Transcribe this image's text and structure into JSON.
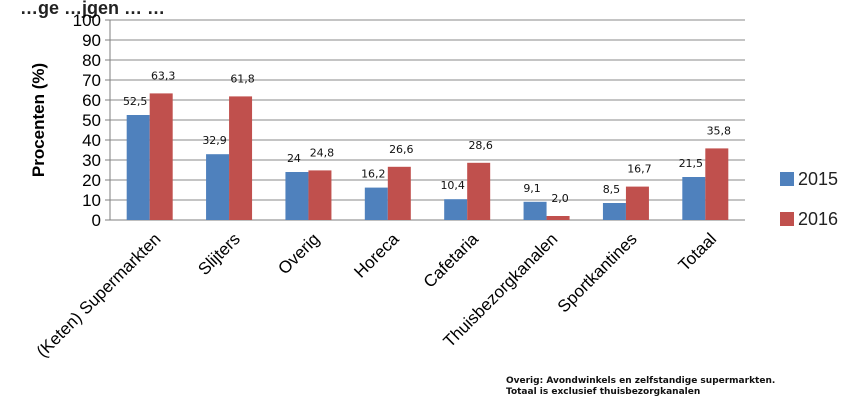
{
  "chart_data": {
    "type": "bar",
    "title": "…ge …jgen … …",
    "ylabel": "Procenten (%)",
    "xlabel": "",
    "ylim": [
      0,
      100
    ],
    "yticks": [
      0,
      10,
      20,
      30,
      40,
      50,
      60,
      70,
      80,
      90,
      100
    ],
    "grid": true,
    "legend_position": "right",
    "categories": [
      "(Keten) Supermarkten",
      "Slijters",
      "Overig",
      "Horeca",
      "Cafetaria",
      "Thuisbezorgkanalen",
      "Sportkantines",
      "Totaal"
    ],
    "series": [
      {
        "name": "2015",
        "color": "#4f81bd",
        "values": [
          52.5,
          32.9,
          24,
          16.2,
          10.4,
          9.1,
          8.5,
          21.5
        ],
        "labels": [
          "52,5",
          "32,9",
          "24",
          "16,2",
          "10,4",
          "9,1",
          "8,5",
          "21,5"
        ]
      },
      {
        "name": "2016",
        "color": "#c0504d",
        "values": [
          63.3,
          61.8,
          24.8,
          26.6,
          28.6,
          2.0,
          16.7,
          35.8
        ],
        "labels": [
          "63,3",
          "61,8",
          "24,8",
          "26,6",
          "28,6",
          "2,0",
          "16,7",
          "35,8"
        ]
      }
    ]
  },
  "footnotes": [
    "Overig: Avondwinkels en zelfstandige supermarkten.",
    "Totaal is exclusief thuisbezorgkanalen"
  ]
}
